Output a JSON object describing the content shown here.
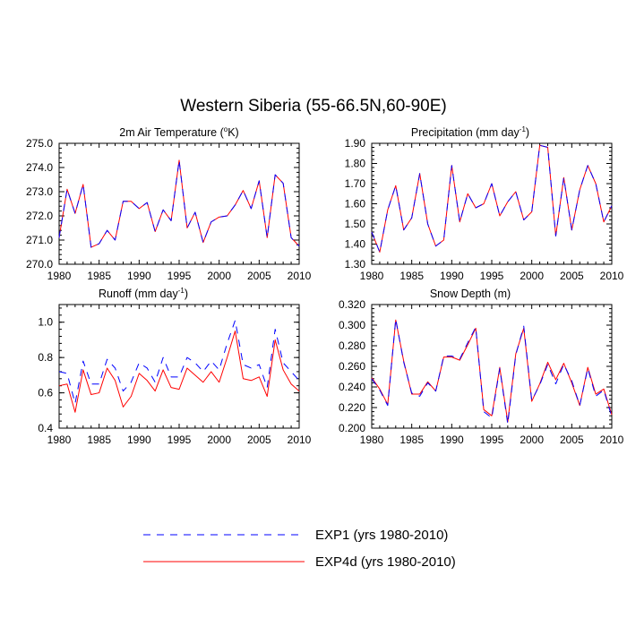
{
  "figure": {
    "title": "Western Siberia (55-66.5N,60-90E)"
  },
  "legend": {
    "entries": [
      {
        "label": "EXP1 (yrs 1980-2010)",
        "color": "#0000ff",
        "dash": true
      },
      {
        "label": "EXP4d (yrs 1980-2010)",
        "color": "#ff0000",
        "dash": false
      }
    ]
  },
  "chart_data": [
    {
      "type": "line",
      "title": "2m Air Temperature (°K)",
      "title_main": "2m Air Temperature (",
      "title_sup": "o",
      "title_post": "K)",
      "x": [
        1980,
        1981,
        1982,
        1983,
        1984,
        1985,
        1986,
        1987,
        1988,
        1989,
        1990,
        1991,
        1992,
        1993,
        1994,
        1995,
        1996,
        1997,
        1998,
        1999,
        2000,
        2001,
        2002,
        2003,
        2004,
        2005,
        2006,
        2007,
        2008,
        2009,
        2010
      ],
      "xlim": [
        1980,
        2010
      ],
      "xticks": [
        "1980",
        "1985",
        "1990",
        "1995",
        "2000",
        "2005",
        "2010"
      ],
      "ylim": [
        270.0,
        275.0
      ],
      "yticks": [
        "270.0",
        "271.0",
        "272.0",
        "273.0",
        "274.0",
        "275.0"
      ],
      "series": [
        {
          "name": "EXP1 (yrs 1980-2010)",
          "values": [
            271.1,
            273.1,
            272.1,
            273.3,
            270.7,
            270.85,
            271.4,
            271.0,
            272.6,
            272.6,
            272.3,
            272.55,
            271.35,
            272.25,
            271.8,
            274.3,
            271.5,
            272.15,
            270.9,
            271.75,
            271.95,
            272.0,
            272.45,
            273.05,
            272.3,
            273.45,
            271.1,
            273.7,
            273.35,
            271.1,
            270.75
          ]
        },
        {
          "name": "EXP4d (yrs 1980-2010)",
          "values": [
            271.1,
            273.1,
            272.1,
            273.3,
            270.7,
            270.85,
            271.4,
            271.0,
            272.6,
            272.6,
            272.3,
            272.55,
            271.35,
            272.25,
            271.8,
            274.3,
            271.5,
            272.15,
            270.9,
            271.75,
            271.95,
            272.0,
            272.45,
            273.05,
            272.3,
            273.45,
            271.1,
            273.7,
            273.35,
            271.1,
            270.75
          ]
        }
      ]
    },
    {
      "type": "line",
      "title": "Precipitation (mm day-1)",
      "title_main": "Precipitation (mm day",
      "title_sup": "-1",
      "title_post": ")",
      "x": [
        1980,
        1981,
        1982,
        1983,
        1984,
        1985,
        1986,
        1987,
        1988,
        1989,
        1990,
        1991,
        1992,
        1993,
        1994,
        1995,
        1996,
        1997,
        1998,
        1999,
        2000,
        2001,
        2002,
        2003,
        2004,
        2005,
        2006,
        2007,
        2008,
        2009,
        2010
      ],
      "xlim": [
        1980,
        2010
      ],
      "xticks": [
        "1980",
        "1985",
        "1990",
        "1995",
        "2000",
        "2005",
        "2010"
      ],
      "ylim": [
        1.3,
        1.9
      ],
      "yticks": [
        "1.30",
        "1.40",
        "1.50",
        "1.60",
        "1.70",
        "1.80",
        "1.90"
      ],
      "series": [
        {
          "name": "EXP1 (yrs 1980-2010)",
          "values": [
            1.46,
            1.36,
            1.57,
            1.69,
            1.47,
            1.53,
            1.75,
            1.5,
            1.39,
            1.42,
            1.79,
            1.51,
            1.65,
            1.58,
            1.6,
            1.7,
            1.54,
            1.61,
            1.66,
            1.52,
            1.56,
            1.89,
            1.88,
            1.44,
            1.73,
            1.47,
            1.67,
            1.79,
            1.7,
            1.51,
            1.59
          ]
        },
        {
          "name": "EXP4d (yrs 1980-2010)",
          "values": [
            1.46,
            1.36,
            1.57,
            1.69,
            1.47,
            1.53,
            1.75,
            1.5,
            1.39,
            1.42,
            1.79,
            1.51,
            1.65,
            1.58,
            1.6,
            1.7,
            1.54,
            1.61,
            1.66,
            1.52,
            1.56,
            1.89,
            1.88,
            1.44,
            1.73,
            1.47,
            1.67,
            1.79,
            1.7,
            1.51,
            1.59
          ]
        }
      ]
    },
    {
      "type": "line",
      "title": "Runoff (mm day-1)",
      "title_main": "Runoff (mm day",
      "title_sup": "-1",
      "title_post": ")",
      "x": [
        1980,
        1981,
        1982,
        1983,
        1984,
        1985,
        1986,
        1987,
        1988,
        1989,
        1990,
        1991,
        1992,
        1993,
        1994,
        1995,
        1996,
        1997,
        1998,
        1999,
        2000,
        2001,
        2002,
        2003,
        2004,
        2005,
        2006,
        2007,
        2008,
        2009,
        2010
      ],
      "xlim": [
        1980,
        2010
      ],
      "xticks": [
        "1980",
        "1985",
        "1990",
        "1995",
        "2000",
        "2005",
        "2010"
      ],
      "ylim": [
        0.4,
        1.1
      ],
      "yticks": [
        "0.4",
        "0.6",
        "0.8",
        "1.0"
      ],
      "series": [
        {
          "name": "EXP1 (yrs 1980-2010)",
          "values": [
            0.72,
            0.71,
            0.54,
            0.78,
            0.65,
            0.65,
            0.79,
            0.74,
            0.61,
            0.66,
            0.77,
            0.74,
            0.66,
            0.8,
            0.69,
            0.69,
            0.8,
            0.77,
            0.72,
            0.78,
            0.73,
            0.88,
            1.01,
            0.76,
            0.74,
            0.76,
            0.63,
            0.96,
            0.77,
            0.72,
            0.67
          ]
        },
        {
          "name": "EXP4d (yrs 1980-2010)",
          "values": [
            0.64,
            0.65,
            0.49,
            0.73,
            0.59,
            0.6,
            0.74,
            0.67,
            0.52,
            0.58,
            0.71,
            0.67,
            0.61,
            0.73,
            0.63,
            0.62,
            0.74,
            0.7,
            0.66,
            0.72,
            0.66,
            0.8,
            0.95,
            0.68,
            0.67,
            0.69,
            0.58,
            0.9,
            0.73,
            0.65,
            0.61
          ]
        }
      ]
    },
    {
      "type": "line",
      "title": "Snow Depth (m)",
      "title_main": "Snow Depth (m)",
      "title_sup": "",
      "title_post": "",
      "x": [
        1980,
        1981,
        1982,
        1983,
        1984,
        1985,
        1986,
        1987,
        1988,
        1989,
        1990,
        1991,
        1992,
        1993,
        1994,
        1995,
        1996,
        1997,
        1998,
        1999,
        2000,
        2001,
        2002,
        2003,
        2004,
        2005,
        2006,
        2007,
        2008,
        2009,
        2010
      ],
      "xlim": [
        1980,
        2010
      ],
      "xticks": [
        "1980",
        "1985",
        "1990",
        "1995",
        "2000",
        "2005",
        "2010"
      ],
      "ylim": [
        0.2,
        0.32
      ],
      "yticks": [
        "0.200",
        "0.220",
        "0.240",
        "0.260",
        "0.280",
        "0.300",
        "0.320"
      ],
      "series": [
        {
          "name": "EXP1 (yrs 1980-2010)",
          "values": [
            0.248,
            0.237,
            0.222,
            0.306,
            0.264,
            0.234,
            0.231,
            0.244,
            0.236,
            0.27,
            0.27,
            0.267,
            0.283,
            0.298,
            0.216,
            0.21,
            0.258,
            0.204,
            0.271,
            0.299,
            0.227,
            0.242,
            0.262,
            0.243,
            0.262,
            0.246,
            0.222,
            0.258,
            0.231,
            0.237,
            0.211
          ]
        },
        {
          "name": "EXP4d (yrs 1980-2010)",
          "values": [
            0.249,
            0.238,
            0.223,
            0.305,
            0.265,
            0.233,
            0.233,
            0.245,
            0.236,
            0.269,
            0.269,
            0.266,
            0.281,
            0.297,
            0.218,
            0.212,
            0.259,
            0.206,
            0.272,
            0.297,
            0.226,
            0.243,
            0.264,
            0.247,
            0.263,
            0.244,
            0.222,
            0.259,
            0.233,
            0.238,
            0.213
          ]
        }
      ]
    }
  ]
}
